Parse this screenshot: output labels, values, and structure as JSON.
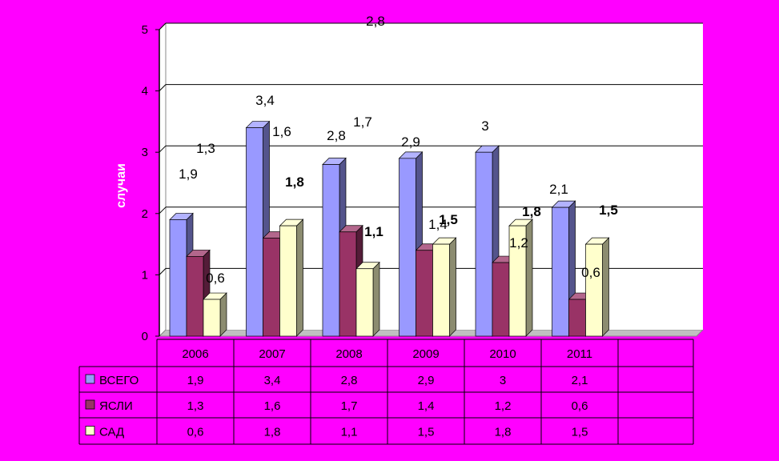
{
  "chart_data": {
    "type": "bar",
    "ylabel": "случаи",
    "ylim": [
      0,
      5
    ],
    "yticks": [
      "0",
      "1",
      "2",
      "3",
      "4",
      "5"
    ],
    "categories": [
      "2006",
      "2007",
      "2008",
      "2009",
      "2010",
      "2011"
    ],
    "series": [
      {
        "name": "ВСЕГО",
        "values": [
          1.9,
          3.4,
          2.8,
          2.9,
          3,
          2.1
        ],
        "labels": [
          "1,9",
          "3,4",
          "2,8",
          "2,9",
          "3",
          "2,1"
        ],
        "color": "#9999ff"
      },
      {
        "name": "ЯСЛИ",
        "values": [
          1.3,
          1.6,
          1.7,
          1.4,
          1.2,
          0.6
        ],
        "labels": [
          "1,3",
          "1,6",
          "1,7",
          "1,4",
          "1,2",
          "0,6"
        ],
        "color": "#993366"
      },
      {
        "name": "САД",
        "values": [
          0.6,
          1.8,
          1.1,
          1.5,
          1.8,
          1.5
        ],
        "labels": [
          "0,6",
          "1,8",
          "1,1",
          "1,5",
          "1,8",
          "1,5"
        ],
        "color": "#ffffcc"
      }
    ],
    "stray_label": "2,8",
    "gridlines": true,
    "legend": "data-table",
    "table_background": "#ff00ff",
    "plot_background": "#ffffff"
  }
}
